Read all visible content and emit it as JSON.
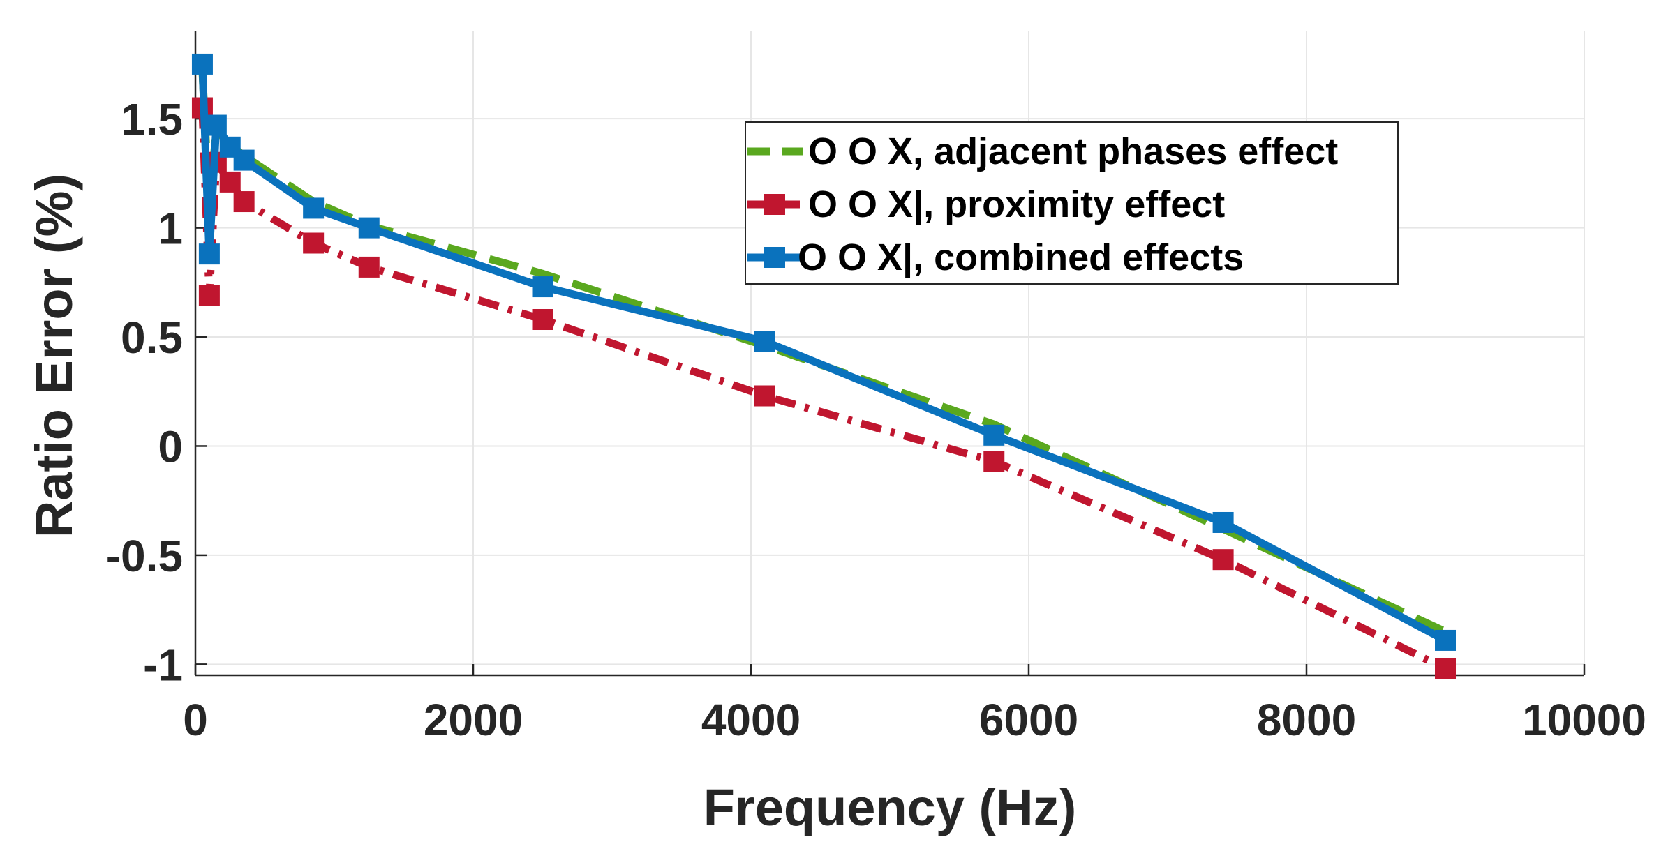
{
  "chart_data": {
    "type": "line",
    "title": "",
    "xlabel": "Frequency (Hz)",
    "ylabel": "Ratio Error (%)",
    "xlim": [
      0,
      10000
    ],
    "ylim": [
      -1.05,
      1.9
    ],
    "xticks": [
      0,
      2000,
      4000,
      6000,
      8000,
      10000
    ],
    "xtick_labels": [
      "0",
      "2000",
      "4000",
      "6000",
      "8000",
      "10000"
    ],
    "yticks": [
      -1,
      -0.5,
      0,
      0.5,
      1,
      1.5
    ],
    "ytick_labels": [
      "-1",
      "-0.5",
      "0",
      "0.5",
      "1",
      "1.5"
    ],
    "grid": true,
    "legend_position": "top-right",
    "series": [
      {
        "name": "O O X, adjacent phases effect",
        "color": "#5aa81f",
        "line_style": "dashed",
        "marker": "none",
        "x": [
          50,
          100,
          150,
          250,
          350,
          850,
          1250,
          2500,
          4100,
          5750,
          7400,
          9000
        ],
        "y": [
          1.72,
          1.1,
          1.45,
          1.38,
          1.33,
          1.12,
          1.01,
          0.79,
          0.46,
          0.1,
          -0.38,
          -0.85
        ]
      },
      {
        "name": "O O X|, proximity effect",
        "color": "#c0162f",
        "line_style": "dash-dot",
        "marker": "square",
        "x": [
          50,
          100,
          150,
          250,
          350,
          850,
          1250,
          2500,
          4100,
          5750,
          7400,
          9000
        ],
        "y": [
          1.55,
          0.69,
          1.3,
          1.21,
          1.12,
          0.93,
          0.82,
          0.58,
          0.23,
          -0.07,
          -0.52,
          -1.02
        ]
      },
      {
        "name": "O O X|, combined effects",
        "color": "#0a72bd",
        "line_style": "solid",
        "marker": "square",
        "x": [
          50,
          100,
          150,
          250,
          350,
          850,
          1250,
          2500,
          4100,
          5750,
          7400,
          9000
        ],
        "y": [
          1.75,
          0.88,
          1.47,
          1.37,
          1.31,
          1.09,
          1.0,
          0.73,
          0.48,
          0.05,
          -0.35,
          -0.89
        ]
      }
    ]
  }
}
